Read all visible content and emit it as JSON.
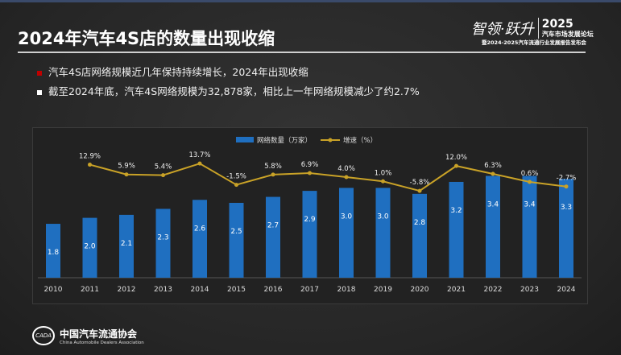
{
  "header": {
    "title": "2024年汽车4S店的数量出现收缩",
    "logo_calligraphy": "智领·跃升",
    "logo_year": "2025",
    "logo_forum": "汽车市场发展论坛",
    "logo_subtitle": "暨2024-2025汽车流通行业发展报告发布会"
  },
  "bullets": [
    {
      "text": "汽车4S店网络规模近几年保持持续增长，2024年出现收缩",
      "color": "#c00000"
    },
    {
      "text": "截至2024年底，汽车4S网络规模为32,878家，相比上一年网络规模减少了约2.7%",
      "color": "#ffffff"
    }
  ],
  "footer": {
    "org_cn": "中国汽车流通协会",
    "org_en": "China Automobile Dealers Association",
    "emblem_text": "CADA"
  },
  "chart_data": {
    "type": "bar+line",
    "categories": [
      "2010",
      "2011",
      "2012",
      "2013",
      "2014",
      "2015",
      "2016",
      "2017",
      "2018",
      "2019",
      "2020",
      "2021",
      "2022",
      "2023",
      "2024"
    ],
    "series": [
      {
        "name": "网络数量（万家）",
        "type": "bar",
        "color": "#1f6fc0",
        "values": [
          1.8,
          2.0,
          2.1,
          2.3,
          2.6,
          2.5,
          2.7,
          2.9,
          3.0,
          3.0,
          2.8,
          3.2,
          3.4,
          3.4,
          3.3
        ],
        "labels": [
          "1.8",
          "2.0",
          "2.1",
          "2.3",
          "2.6",
          "2.5",
          "2.7",
          "2.9",
          "3.0",
          "3.0",
          "2.8",
          "3.2",
          "3.4",
          "3.4",
          "3.3"
        ]
      },
      {
        "name": "增速（%）",
        "type": "line",
        "color": "#c9a227",
        "values": [
          null,
          12.9,
          5.9,
          5.4,
          13.7,
          -1.5,
          5.8,
          6.9,
          4.0,
          1.0,
          -5.8,
          12.0,
          6.3,
          0.6,
          -2.7
        ],
        "labels": [
          "",
          "12.9%",
          "5.9%",
          "5.4%",
          "13.7%",
          "-1.5%",
          "5.8%",
          "6.9%",
          "4.0%",
          "1.0%",
          "-5.8%",
          "12.0%",
          "6.3%",
          "0.6%",
          "-2.7%"
        ]
      }
    ],
    "legend": "top-center",
    "grid": false
  }
}
